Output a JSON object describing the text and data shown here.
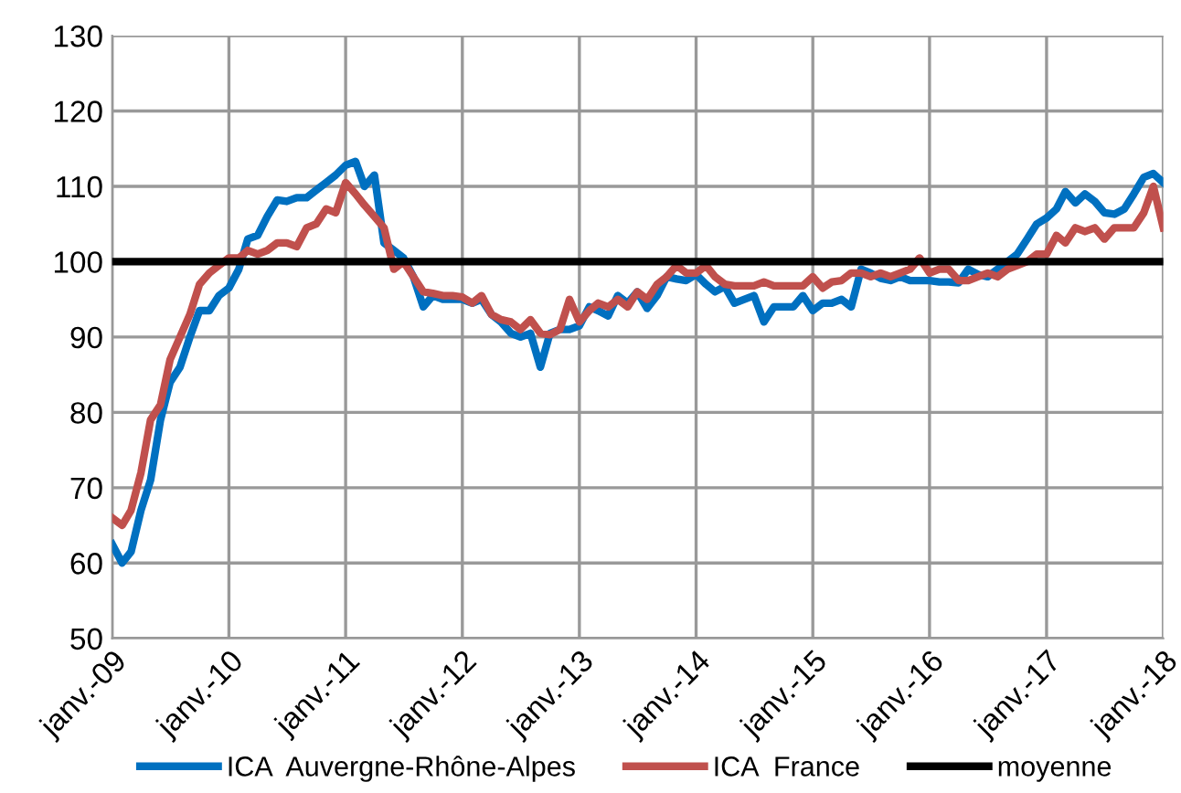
{
  "chart_data": {
    "type": "line",
    "x": [
      "2009-01",
      "2009-02",
      "2009-03",
      "2009-04",
      "2009-05",
      "2009-06",
      "2009-07",
      "2009-08",
      "2009-09",
      "2009-10",
      "2009-11",
      "2009-12",
      "2010-01",
      "2010-02",
      "2010-03",
      "2010-04",
      "2010-05",
      "2010-06",
      "2010-07",
      "2010-08",
      "2010-09",
      "2010-10",
      "2010-11",
      "2010-12",
      "2011-01",
      "2011-02",
      "2011-03",
      "2011-04",
      "2011-05",
      "2011-06",
      "2011-07",
      "2011-08",
      "2011-09",
      "2011-10",
      "2011-11",
      "2011-12",
      "2012-01",
      "2012-02",
      "2012-03",
      "2012-04",
      "2012-05",
      "2012-06",
      "2012-07",
      "2012-08",
      "2012-09",
      "2012-10",
      "2012-11",
      "2012-12",
      "2013-01",
      "2013-02",
      "2013-03",
      "2013-04",
      "2013-05",
      "2013-06",
      "2013-07",
      "2013-08",
      "2013-09",
      "2013-10",
      "2013-11",
      "2013-12",
      "2014-01",
      "2014-02",
      "2014-03",
      "2014-04",
      "2014-05",
      "2014-06",
      "2014-07",
      "2014-08",
      "2014-09",
      "2014-10",
      "2014-11",
      "2014-12",
      "2015-01",
      "2015-02",
      "2015-03",
      "2015-04",
      "2015-05",
      "2015-06",
      "2015-07",
      "2015-08",
      "2015-09",
      "2015-10",
      "2015-11",
      "2015-12",
      "2016-01",
      "2016-02",
      "2016-03",
      "2016-04",
      "2016-05",
      "2016-06",
      "2016-07",
      "2016-08",
      "2016-09",
      "2016-10",
      "2016-11",
      "2016-12",
      "2017-01",
      "2017-02",
      "2017-03",
      "2017-04",
      "2017-05",
      "2017-06",
      "2017-07",
      "2017-08",
      "2017-09",
      "2017-10",
      "2017-11",
      "2017-12",
      "2018-01"
    ],
    "series": [
      {
        "name": "ICA  Auvergne-Rhône-Alpes",
        "color": "#0070c0",
        "values": [
          62.5,
          60,
          61.5,
          67,
          71,
          79,
          84,
          86,
          90,
          93.5,
          93.5,
          95.5,
          96.5,
          99,
          103,
          103.5,
          106,
          108.2,
          108,
          108.5,
          108.5,
          109.5,
          110.5,
          111.5,
          112.8,
          113.3,
          110,
          111.5,
          102.5,
          101.5,
          100.5,
          98,
          94,
          95.5,
          95,
          95,
          95,
          94.5,
          95,
          93,
          92,
          90.5,
          90,
          90.5,
          86,
          90.5,
          91,
          91,
          91.5,
          94,
          93.5,
          92.8,
          95.5,
          94.5,
          96,
          93.8,
          95.5,
          98,
          97.7,
          97.5,
          98.3,
          97,
          96,
          96.7,
          94.5,
          95,
          95.5,
          92,
          94,
          94,
          94,
          95.5,
          93.5,
          94.5,
          94.5,
          95,
          94,
          99,
          98.5,
          97.8,
          97.5,
          98,
          97.5,
          97.5,
          97.5,
          97.3,
          97.3,
          97.2,
          99,
          98.3,
          98,
          99,
          100,
          101,
          103,
          105,
          105.8,
          107,
          109.3,
          107.8,
          109,
          108,
          106.5,
          106.3,
          107,
          109,
          111.2,
          111.7,
          110.5
        ]
      },
      {
        "name": "ICA  France",
        "color": "#c0504d",
        "values": [
          66,
          65,
          67,
          72,
          79,
          81,
          87,
          90,
          93,
          97,
          98.5,
          99.5,
          100.5,
          100.5,
          101.5,
          101,
          101.5,
          102.5,
          102.5,
          102,
          104.5,
          105,
          107,
          106.5,
          110.5,
          109,
          107.5,
          106,
          104.5,
          99,
          100,
          98,
          96,
          95.8,
          95.5,
          95.5,
          95.3,
          94.5,
          95.5,
          93,
          92.3,
          92,
          91,
          92.3,
          90.5,
          90.3,
          91,
          95,
          92,
          93.5,
          94.5,
          94,
          95,
          94,
          96,
          95,
          97,
          98,
          99.5,
          98.5,
          98.5,
          99.5,
          98,
          97,
          96.8,
          96.8,
          96.8,
          97.3,
          96.8,
          96.8,
          96.8,
          96.8,
          98,
          96.5,
          97.3,
          97.5,
          98.5,
          98.5,
          98,
          98.5,
          98,
          98.5,
          99,
          100.5,
          98.5,
          99,
          99,
          97.5,
          97.5,
          98,
          98.5,
          98,
          99,
          99.5,
          100,
          101,
          101,
          103.5,
          102.5,
          104.5,
          104,
          104.5,
          103,
          104.5,
          104.5,
          104.5,
          106.5,
          110,
          104.5
        ]
      }
    ],
    "ref_lines": [
      {
        "axis": "y",
        "value": 100,
        "label": "moyenne",
        "color": "#000000",
        "line_style": "solid"
      }
    ],
    "xlim": [
      "2009-01",
      "2018-01"
    ],
    "xticks": [
      {
        "value": "2009-01",
        "label": "janv.-09"
      },
      {
        "value": "2010-01",
        "label": "janv.-10"
      },
      {
        "value": "2011-01",
        "label": "janv.-11"
      },
      {
        "value": "2012-01",
        "label": "janv.-12"
      },
      {
        "value": "2013-01",
        "label": "janv.-13"
      },
      {
        "value": "2014-01",
        "label": "janv.-14"
      },
      {
        "value": "2015-01",
        "label": "janv.-15"
      },
      {
        "value": "2016-01",
        "label": "janv.-16"
      },
      {
        "value": "2017-01",
        "label": "janv.-17"
      },
      {
        "value": "2018-01",
        "label": "janv.-18"
      }
    ],
    "ylim": [
      50,
      130
    ],
    "yticks": [
      50,
      60,
      70,
      80,
      90,
      100,
      110,
      120,
      130
    ],
    "grid": true,
    "legend": "bottom",
    "marker": "none",
    "line_style": "solid"
  }
}
